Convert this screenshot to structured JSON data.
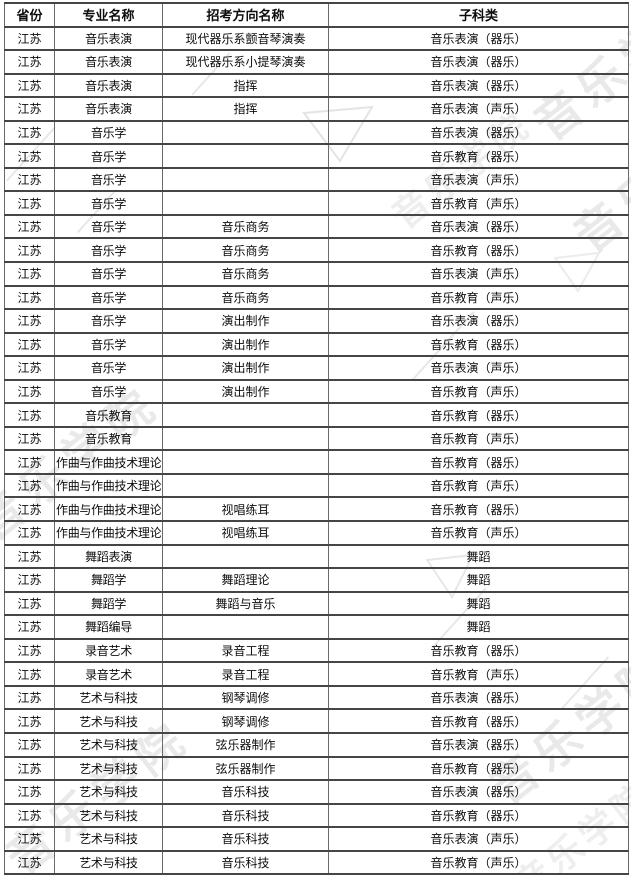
{
  "watermark": {
    "text": "音乐学院",
    "color": "#d9d9d9"
  },
  "table": {
    "columns": [
      "省份",
      "专业名称",
      "招考方向名称",
      "子科类"
    ],
    "rows": [
      {
        "province": "江苏",
        "major": "音乐表演",
        "direction": "现代器乐系颤音琴演奏",
        "subcategory": "音乐表演（器乐）"
      },
      {
        "province": "江苏",
        "major": "音乐表演",
        "direction": "现代器乐系小提琴演奏",
        "subcategory": "音乐表演（器乐）"
      },
      {
        "province": "江苏",
        "major": "音乐表演",
        "direction": "指挥",
        "subcategory": "音乐表演（器乐）"
      },
      {
        "province": "江苏",
        "major": "音乐表演",
        "direction": "指挥",
        "subcategory": "音乐表演（声乐）"
      },
      {
        "province": "江苏",
        "major": "音乐学",
        "direction": "",
        "subcategory": "音乐表演（器乐）"
      },
      {
        "province": "江苏",
        "major": "音乐学",
        "direction": "",
        "subcategory": "音乐教育（器乐）"
      },
      {
        "province": "江苏",
        "major": "音乐学",
        "direction": "",
        "subcategory": "音乐表演（声乐）"
      },
      {
        "province": "江苏",
        "major": "音乐学",
        "direction": "",
        "subcategory": "音乐教育（声乐）"
      },
      {
        "province": "江苏",
        "major": "音乐学",
        "direction": "音乐商务",
        "subcategory": "音乐表演（器乐）"
      },
      {
        "province": "江苏",
        "major": "音乐学",
        "direction": "音乐商务",
        "subcategory": "音乐教育（器乐）"
      },
      {
        "province": "江苏",
        "major": "音乐学",
        "direction": "音乐商务",
        "subcategory": "音乐表演（声乐）"
      },
      {
        "province": "江苏",
        "major": "音乐学",
        "direction": "音乐商务",
        "subcategory": "音乐教育（声乐）"
      },
      {
        "province": "江苏",
        "major": "音乐学",
        "direction": "演出制作",
        "subcategory": "音乐表演（器乐）"
      },
      {
        "province": "江苏",
        "major": "音乐学",
        "direction": "演出制作",
        "subcategory": "音乐教育（器乐）"
      },
      {
        "province": "江苏",
        "major": "音乐学",
        "direction": "演出制作",
        "subcategory": "音乐表演（声乐）"
      },
      {
        "province": "江苏",
        "major": "音乐学",
        "direction": "演出制作",
        "subcategory": "音乐教育（声乐）"
      },
      {
        "province": "江苏",
        "major": "音乐教育",
        "direction": "",
        "subcategory": "音乐教育（器乐）"
      },
      {
        "province": "江苏",
        "major": "音乐教育",
        "direction": "",
        "subcategory": "音乐教育（声乐）"
      },
      {
        "province": "江苏",
        "major": "作曲与作曲技术理论",
        "direction": "",
        "subcategory": "音乐教育（器乐）"
      },
      {
        "province": "江苏",
        "major": "作曲与作曲技术理论",
        "direction": "",
        "subcategory": "音乐教育（声乐）"
      },
      {
        "province": "江苏",
        "major": "作曲与作曲技术理论",
        "direction": "视唱练耳",
        "subcategory": "音乐教育（器乐）"
      },
      {
        "province": "江苏",
        "major": "作曲与作曲技术理论",
        "direction": "视唱练耳",
        "subcategory": "音乐教育（声乐）"
      },
      {
        "province": "江苏",
        "major": "舞蹈表演",
        "direction": "",
        "subcategory": "舞蹈"
      },
      {
        "province": "江苏",
        "major": "舞蹈学",
        "direction": "舞蹈理论",
        "subcategory": "舞蹈"
      },
      {
        "province": "江苏",
        "major": "舞蹈学",
        "direction": "舞蹈与音乐",
        "subcategory": "舞蹈"
      },
      {
        "province": "江苏",
        "major": "舞蹈编导",
        "direction": "",
        "subcategory": "舞蹈"
      },
      {
        "province": "江苏",
        "major": "录音艺术",
        "direction": "录音工程",
        "subcategory": "音乐教育（器乐）"
      },
      {
        "province": "江苏",
        "major": "录音艺术",
        "direction": "录音工程",
        "subcategory": "音乐教育（声乐）"
      },
      {
        "province": "江苏",
        "major": "艺术与科技",
        "direction": "钢琴调修",
        "subcategory": "音乐表演（器乐）"
      },
      {
        "province": "江苏",
        "major": "艺术与科技",
        "direction": "钢琴调修",
        "subcategory": "音乐教育（器乐）"
      },
      {
        "province": "江苏",
        "major": "艺术与科技",
        "direction": "弦乐器制作",
        "subcategory": "音乐表演（器乐）"
      },
      {
        "province": "江苏",
        "major": "艺术与科技",
        "direction": "弦乐器制作",
        "subcategory": "音乐教育（器乐）"
      },
      {
        "province": "江苏",
        "major": "艺术与科技",
        "direction": "音乐科技",
        "subcategory": "音乐表演（器乐）"
      },
      {
        "province": "江苏",
        "major": "艺术与科技",
        "direction": "音乐科技",
        "subcategory": "音乐教育（器乐）"
      },
      {
        "province": "江苏",
        "major": "艺术与科技",
        "direction": "音乐科技",
        "subcategory": "音乐表演（声乐）"
      },
      {
        "province": "江苏",
        "major": "艺术与科技",
        "direction": "音乐科技",
        "subcategory": "音乐教育（声乐）"
      }
    ]
  }
}
